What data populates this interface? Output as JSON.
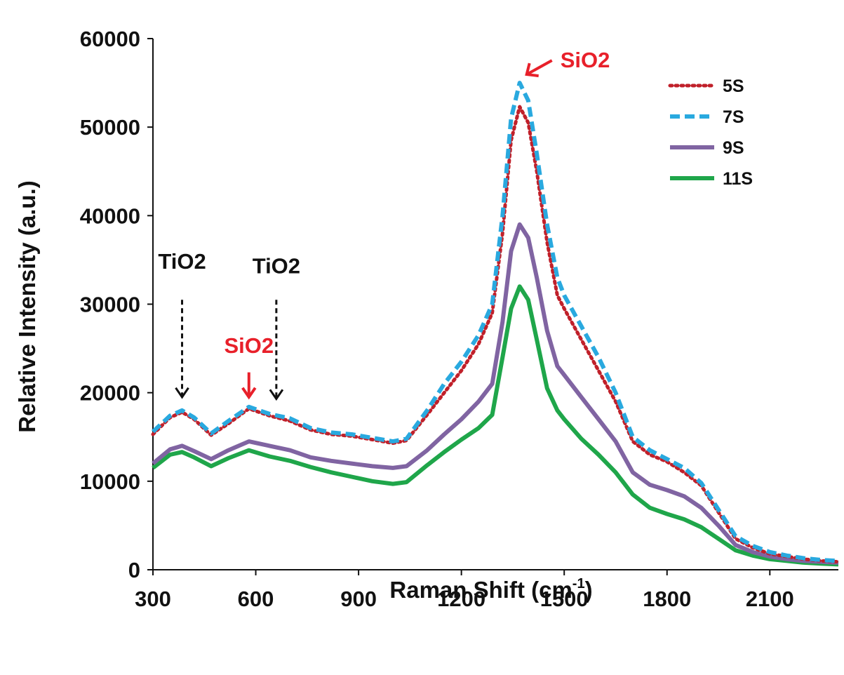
{
  "chart_data": {
    "type": "line",
    "xlabel": "Raman Shift (cm",
    "xlabel_sup": "-1",
    "xlabel_close": ")",
    "ylabel": "Relative Intensity (a.u.)",
    "xlim": [
      300,
      2300
    ],
    "ylim": [
      0,
      60000
    ],
    "x_ticks": [
      300,
      600,
      900,
      1200,
      1500,
      1800,
      2100
    ],
    "x_tick_labels": [
      "300",
      "600",
      "900",
      "1200",
      "1500",
      "1800",
      "2100"
    ],
    "y_ticks": [
      0,
      10000,
      20000,
      30000,
      40000,
      50000,
      60000
    ],
    "y_tick_labels": [
      "0",
      "10000",
      "20000",
      "30000",
      "40000",
      "50000",
      "60000"
    ],
    "grid": false,
    "legend_position": "top-right",
    "series": [
      {
        "name": "5S",
        "color": "#c0202a",
        "dash": "dotted",
        "x": [
          300,
          350,
          385,
          420,
          470,
          520,
          580,
          640,
          700,
          760,
          820,
          880,
          940,
          1000,
          1040,
          1100,
          1150,
          1200,
          1250,
          1290,
          1320,
          1345,
          1370,
          1395,
          1420,
          1450,
          1480,
          1500,
          1550,
          1600,
          1650,
          1700,
          1750,
          1800,
          1850,
          1900,
          1950,
          2000,
          2050,
          2100,
          2150,
          2200,
          2250,
          2300
        ],
        "y": [
          15300,
          17200,
          17800,
          17000,
          15200,
          16500,
          18200,
          17400,
          16800,
          15800,
          15300,
          15100,
          14700,
          14300,
          14600,
          17500,
          20000,
          22500,
          25500,
          29000,
          38000,
          48500,
          52300,
          50500,
          45000,
          37000,
          31000,
          29500,
          26000,
          22500,
          19000,
          14500,
          13000,
          12200,
          11000,
          9500,
          6500,
          3500,
          2500,
          1800,
          1500,
          1200,
          1000,
          900
        ]
      },
      {
        "name": "7S",
        "color": "#29a9df",
        "dash": "dashed",
        "x": [
          300,
          350,
          385,
          420,
          470,
          520,
          580,
          640,
          700,
          760,
          820,
          880,
          940,
          1000,
          1040,
          1100,
          1150,
          1200,
          1250,
          1290,
          1320,
          1345,
          1370,
          1395,
          1420,
          1450,
          1480,
          1500,
          1550,
          1600,
          1650,
          1700,
          1750,
          1800,
          1850,
          1900,
          1950,
          2000,
          2050,
          2100,
          2150,
          2200,
          2250,
          2300
        ],
        "y": [
          15600,
          17400,
          18000,
          17200,
          15400,
          16800,
          18400,
          17600,
          17100,
          16000,
          15500,
          15300,
          14900,
          14500,
          14800,
          18000,
          21000,
          23500,
          26500,
          30000,
          40000,
          51000,
          55000,
          53000,
          47000,
          39000,
          33000,
          31000,
          27500,
          24000,
          20000,
          15000,
          13500,
          12500,
          11500,
          9800,
          6800,
          3800,
          2700,
          2000,
          1600,
          1300,
          1100,
          1000
        ]
      },
      {
        "name": "9S",
        "color": "#8064a2",
        "dash": "solid",
        "x": [
          300,
          350,
          385,
          420,
          470,
          520,
          580,
          640,
          700,
          760,
          820,
          880,
          940,
          1000,
          1040,
          1100,
          1150,
          1200,
          1250,
          1290,
          1320,
          1345,
          1370,
          1395,
          1420,
          1450,
          1480,
          1500,
          1550,
          1600,
          1650,
          1700,
          1750,
          1800,
          1850,
          1900,
          1950,
          2000,
          2050,
          2100,
          2150,
          2200,
          2250,
          2300
        ],
        "y": [
          12000,
          13600,
          14000,
          13400,
          12500,
          13500,
          14500,
          14000,
          13500,
          12700,
          12300,
          12000,
          11700,
          11500,
          11700,
          13500,
          15300,
          17000,
          19000,
          21000,
          28000,
          36000,
          39000,
          37500,
          33000,
          27000,
          23000,
          22000,
          19500,
          17000,
          14500,
          11000,
          9600,
          9000,
          8300,
          7000,
          5000,
          2800,
          2000,
          1500,
          1200,
          1000,
          900,
          800
        ]
      },
      {
        "name": "11S",
        "color": "#1fa64a",
        "dash": "solid",
        "x": [
          300,
          350,
          385,
          420,
          470,
          520,
          580,
          640,
          700,
          760,
          820,
          880,
          940,
          1000,
          1040,
          1100,
          1150,
          1200,
          1250,
          1290,
          1320,
          1345,
          1370,
          1395,
          1420,
          1450,
          1480,
          1500,
          1550,
          1600,
          1650,
          1700,
          1750,
          1800,
          1850,
          1900,
          1950,
          2000,
          2050,
          2100,
          2150,
          2200,
          2250,
          2300
        ],
        "y": [
          11500,
          13000,
          13300,
          12700,
          11700,
          12600,
          13500,
          12800,
          12300,
          11600,
          11000,
          10500,
          10000,
          9700,
          9900,
          11800,
          13300,
          14700,
          16000,
          17500,
          24000,
          29500,
          32000,
          30500,
          26000,
          20500,
          18000,
          17000,
          14800,
          13000,
          11000,
          8500,
          7000,
          6300,
          5700,
          4800,
          3500,
          2200,
          1600,
          1200,
          1000,
          800,
          700,
          600
        ]
      }
    ],
    "annotations": [
      {
        "text": "TiO2",
        "color": "#111111",
        "x": 385,
        "y_text": 34000,
        "arrow_from": 30500,
        "arrow_to": 19500,
        "style": "dashed"
      },
      {
        "text": "TiO2",
        "color": "#111111",
        "x": 660,
        "y_text": 33500,
        "arrow_from": 30500,
        "arrow_to": 19300,
        "style": "dashed"
      },
      {
        "text": "SiO2",
        "color": "#e8202a",
        "x": 580,
        "y_text": 24500,
        "arrow_from": 22300,
        "arrow_to": 19500,
        "style": "solid"
      },
      {
        "text": "SiO2",
        "color": "#e8202a",
        "x": 1370,
        "y_text": 55800,
        "arrow_from": 56000,
        "arrow_to": 55000,
        "style": "solid-diagonal"
      }
    ]
  }
}
